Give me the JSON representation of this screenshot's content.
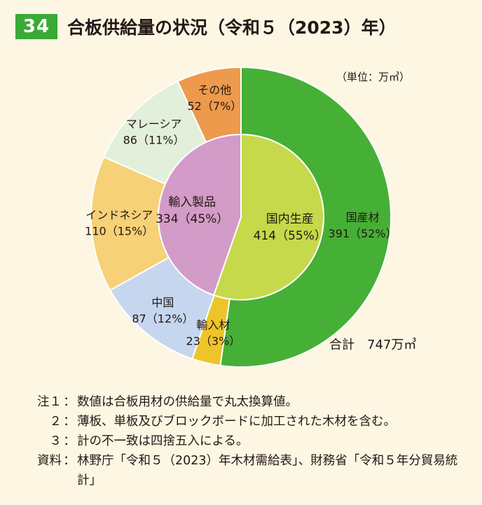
{
  "figure": {
    "number": "34",
    "title": "合板供給量の状況（令和５（2023）年）"
  },
  "chart_data": {
    "type": "pie",
    "unit_label": "（単位：万㎥）",
    "total_label": "合計　747万㎥",
    "colors": {
      "outer_stroke": "#FFFFFF",
      "inner_stroke": "#FFFFFF"
    },
    "inner": [
      {
        "name": "国内生産",
        "value": 414,
        "label": "414（55%）",
        "color": "#C5D94A"
      },
      {
        "name": "輸入製品",
        "value": 334,
        "label": "334（45%）",
        "color": "#D39BC7"
      }
    ],
    "outer": [
      {
        "name": "国産材",
        "value": 391,
        "label": "391（52%）",
        "color": "#45B035"
      },
      {
        "name": "輸入材",
        "value": 23,
        "label": "23（3%）",
        "color": "#EEC42B"
      },
      {
        "name": "中国",
        "value": 87,
        "label": "87（12%）",
        "color": "#C6D6EE"
      },
      {
        "name": "インドネシア",
        "value": 110,
        "label": "110（15%）",
        "color": "#F7D177"
      },
      {
        "name": "マレーシア",
        "value": 86,
        "label": "86（11%）",
        "color": "#E2EFDB"
      },
      {
        "name": "その他",
        "value": 52,
        "label": "52（7%）",
        "color": "#EE9A4C"
      }
    ]
  },
  "notes": [
    {
      "label": "注１",
      "text": "数値は合板用材の供給量で丸太換算値。"
    },
    {
      "label": "２",
      "text": "薄板、単板及びブロックボードに加工された木材を含む。"
    },
    {
      "label": "３",
      "text": "計の不一致は四捨五入による。"
    },
    {
      "label": "資料",
      "text": "林野庁「令和５（2023）年木材需給表」、財務省「令和５年分貿易統計」"
    }
  ]
}
